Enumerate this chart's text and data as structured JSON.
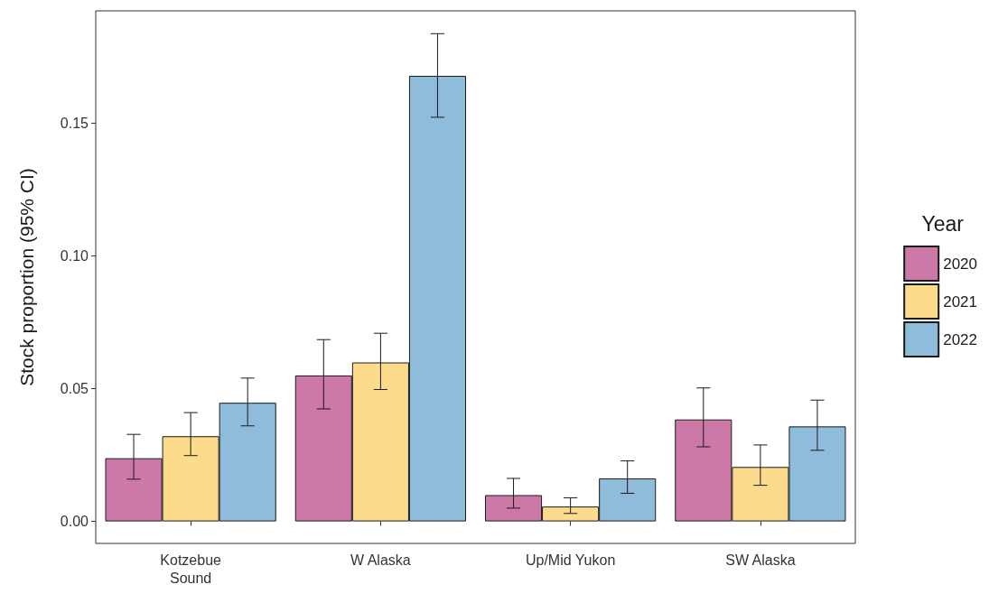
{
  "chart_data": {
    "type": "bar",
    "ylabel": "Stock proportion (95% CI)",
    "legend_title": "Year",
    "legend": "right",
    "grid": false,
    "categories": [
      "Kotzebue\nSound",
      "W Alaska",
      "Up/Mid Yukon",
      "SW Alaska"
    ],
    "ylim": [
      -0.0083,
      0.1924
    ],
    "yticks": [
      {
        "value": 0,
        "label": "0.00"
      },
      {
        "value": 0.05,
        "label": "0.05"
      },
      {
        "value": 0.1,
        "label": "0.10"
      },
      {
        "value": 0.15,
        "label": "0.15"
      }
    ],
    "series": [
      {
        "name": "2020",
        "color": "#cc79a7",
        "values": [
          0.0238,
          0.055,
          0.0099,
          0.0384
        ],
        "errors": [
          [
            0.0159,
            0.0328
          ],
          [
            0.0424,
            0.0685
          ],
          [
            0.005,
            0.0162
          ],
          [
            0.0281,
            0.0503
          ]
        ]
      },
      {
        "name": "2021",
        "color": "#fcdb8d",
        "values": [
          0.0321,
          0.0599,
          0.0056,
          0.0205
        ],
        "errors": [
          [
            0.0248,
            0.041
          ],
          [
            0.0497,
            0.0709
          ],
          [
            0.003,
            0.0089
          ],
          [
            0.0136,
            0.0288
          ]
        ]
      },
      {
        "name": "2022",
        "color": "#8fbcdb",
        "values": [
          0.0447,
          0.1679,
          0.0162,
          0.0358
        ],
        "errors": [
          [
            0.036,
            0.054
          ],
          [
            0.1523,
            0.1838
          ],
          [
            0.0106,
            0.0228
          ],
          [
            0.0268,
            0.0457
          ]
        ]
      }
    ]
  }
}
